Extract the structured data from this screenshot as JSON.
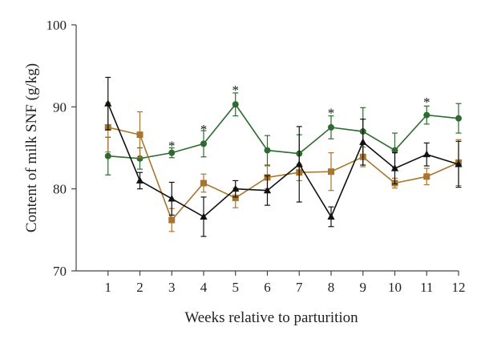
{
  "chart_data": {
    "type": "line",
    "title": "",
    "xlabel": "Weeks relative to parturition",
    "ylabel": "Content of milk SNF (g/kg)",
    "x": [
      1,
      2,
      3,
      4,
      5,
      6,
      7,
      8,
      9,
      10,
      11,
      12
    ],
    "xlim": [
      0,
      12
    ],
    "ylim": [
      70,
      100
    ],
    "yticks": [
      70,
      80,
      90,
      100
    ],
    "grid": false,
    "legend": "none",
    "series": [
      {
        "marker": "circle",
        "color": "#2e6b30",
        "values": [
          84.0,
          83.7,
          84.4,
          85.5,
          90.3,
          84.7,
          84.3,
          87.5,
          87.0,
          84.7,
          89.0,
          88.6
        ],
        "errors": [
          2.3,
          1.3,
          0.6,
          1.6,
          1.4,
          1.8,
          2.3,
          1.4,
          2.9,
          2.1,
          1.1,
          1.8
        ]
      },
      {
        "marker": "square",
        "color": "#a8752c",
        "values": [
          87.5,
          86.6,
          76.2,
          80.7,
          78.9,
          81.4,
          82.0,
          82.1,
          83.9,
          80.7,
          81.5,
          83.2
        ],
        "errors": [
          3.0,
          2.8,
          1.4,
          1.1,
          1.2,
          1.4,
          1.0,
          2.3,
          1.2,
          0.6,
          1.0,
          2.8
        ]
      },
      {
        "marker": "triangle",
        "color": "#111111",
        "values": [
          90.4,
          81.0,
          78.8,
          76.6,
          80.0,
          79.8,
          83.0,
          76.6,
          85.7,
          82.5,
          84.2,
          83.0
        ],
        "errors": [
          3.2,
          1.0,
          2.0,
          2.4,
          1.0,
          1.8,
          4.6,
          1.2,
          2.8,
          1.9,
          1.4,
          2.8
        ]
      }
    ],
    "annotations": [
      {
        "x": 3,
        "y": 85.3,
        "text": "*"
      },
      {
        "x": 4,
        "y": 87.3,
        "text": "*"
      },
      {
        "x": 5,
        "y": 92.1,
        "text": "*"
      },
      {
        "x": 8,
        "y": 89.3,
        "text": "*"
      },
      {
        "x": 11,
        "y": 90.6,
        "text": "*"
      }
    ]
  }
}
